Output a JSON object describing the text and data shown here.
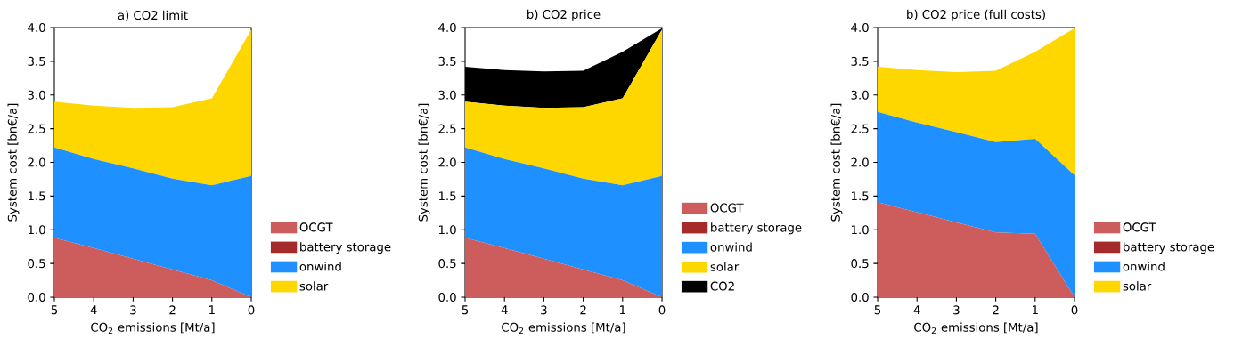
{
  "chart_data": [
    {
      "type": "area",
      "stacked": true,
      "title": "a) CO2 limit",
      "xlabel": "CO$_{2}$ emissions [Mt/a]",
      "ylabel": "System cost [bn€/a]",
      "x": [
        5,
        4,
        3,
        2,
        1,
        0
      ],
      "xlim": [
        5,
        0
      ],
      "xticks": [
        5,
        4,
        3,
        2,
        1,
        0
      ],
      "ylim": [
        0,
        4
      ],
      "yticks": [
        {
          "value": 0,
          "label": "0.0"
        },
        {
          "value": 0.5,
          "label": "0.5"
        },
        {
          "value": 1,
          "label": "1.0"
        },
        {
          "value": 1.5,
          "label": "1.5"
        },
        {
          "value": 2,
          "label": "2.0"
        },
        {
          "value": 2.5,
          "label": "2.5"
        },
        {
          "value": 3,
          "label": "3.0"
        },
        {
          "value": 3.5,
          "label": "3.5"
        },
        {
          "value": 4,
          "label": "4.0"
        }
      ],
      "legend": "right",
      "series": [
        {
          "name": "OCGT",
          "color": "#cd5c5c",
          "values": [
            0.88,
            0.73,
            0.57,
            0.41,
            0.25,
            0
          ]
        },
        {
          "name": "battery storage",
          "color": "#a52a2a",
          "values": [
            null,
            null,
            null,
            null,
            null,
            null
          ]
        },
        {
          "name": "onwind",
          "color": "#1e90ff",
          "values": [
            1.34,
            1.32,
            1.34,
            1.35,
            1.41,
            1.8
          ]
        },
        {
          "name": "solar",
          "color": "#ffd700",
          "values": [
            0.68,
            0.79,
            0.9,
            1.06,
            1.29,
            2.17
          ]
        }
      ]
    },
    {
      "type": "area",
      "stacked": true,
      "title": "b) CO2 price",
      "xlabel": "CO$_{2}$ emissions [Mt/a]",
      "ylabel": "System cost [bn€/a]",
      "x": [
        5,
        4,
        3,
        2,
        1,
        0
      ],
      "xlim": [
        5,
        0
      ],
      "xticks": [
        5,
        4,
        3,
        2,
        1,
        0
      ],
      "ylim": [
        0,
        4
      ],
      "yticks": [
        {
          "value": 0,
          "label": "0.0"
        },
        {
          "value": 0.5,
          "label": "0.5"
        },
        {
          "value": 1,
          "label": "1.0"
        },
        {
          "value": 1.5,
          "label": "1.5"
        },
        {
          "value": 2,
          "label": "2.0"
        },
        {
          "value": 2.5,
          "label": "2.5"
        },
        {
          "value": 3,
          "label": "3.0"
        },
        {
          "value": 3.5,
          "label": "3.5"
        },
        {
          "value": 4,
          "label": "4.0"
        }
      ],
      "legend": "right",
      "series": [
        {
          "name": "OCGT",
          "color": "#cd5c5c",
          "values": [
            0.88,
            0.73,
            0.57,
            0.41,
            0.25,
            0
          ]
        },
        {
          "name": "battery storage",
          "color": "#a52a2a",
          "values": [
            null,
            null,
            null,
            null,
            null,
            null
          ]
        },
        {
          "name": "onwind",
          "color": "#1e90ff",
          "values": [
            1.34,
            1.32,
            1.34,
            1.35,
            1.41,
            1.8
          ]
        },
        {
          "name": "solar",
          "color": "#ffd700",
          "values": [
            0.68,
            0.79,
            0.9,
            1.06,
            1.29,
            2.17
          ]
        },
        {
          "name": "CO2",
          "color": "#000000",
          "values": [
            0.52,
            0.53,
            0.54,
            0.54,
            0.69,
            0.02
          ]
        }
      ]
    },
    {
      "type": "area",
      "stacked": true,
      "title": "b) CO2 price (full costs)",
      "xlabel": "CO$_{2}$ emissions [Mt/a]",
      "ylabel": "System cost [bn€/a]",
      "x": [
        5,
        4,
        3,
        2,
        1,
        0
      ],
      "xlim": [
        5,
        0
      ],
      "xticks": [
        5,
        4,
        3,
        2,
        1,
        0
      ],
      "ylim": [
        0,
        4
      ],
      "yticks": [
        {
          "value": 0,
          "label": "0.0"
        },
        {
          "value": 0.5,
          "label": "0.5"
        },
        {
          "value": 1,
          "label": "1.0"
        },
        {
          "value": 1.5,
          "label": "1.5"
        },
        {
          "value": 2,
          "label": "2.0"
        },
        {
          "value": 2.5,
          "label": "2.5"
        },
        {
          "value": 3,
          "label": "3.0"
        },
        {
          "value": 3.5,
          "label": "3.5"
        },
        {
          "value": 4,
          "label": "4.0"
        }
      ],
      "legend": "right",
      "series": [
        {
          "name": "OCGT",
          "color": "#cd5c5c",
          "values": [
            1.41,
            1.26,
            1.11,
            0.96,
            0.94,
            0
          ]
        },
        {
          "name": "battery storage",
          "color": "#a52a2a",
          "values": [
            null,
            null,
            null,
            null,
            null,
            null
          ]
        },
        {
          "name": "onwind",
          "color": "#1e90ff",
          "values": [
            1.34,
            1.33,
            1.34,
            1.34,
            1.41,
            1.81
          ]
        },
        {
          "name": "solar",
          "color": "#ffd700",
          "values": [
            0.67,
            0.78,
            0.89,
            1.06,
            1.29,
            2.18
          ]
        }
      ]
    }
  ]
}
